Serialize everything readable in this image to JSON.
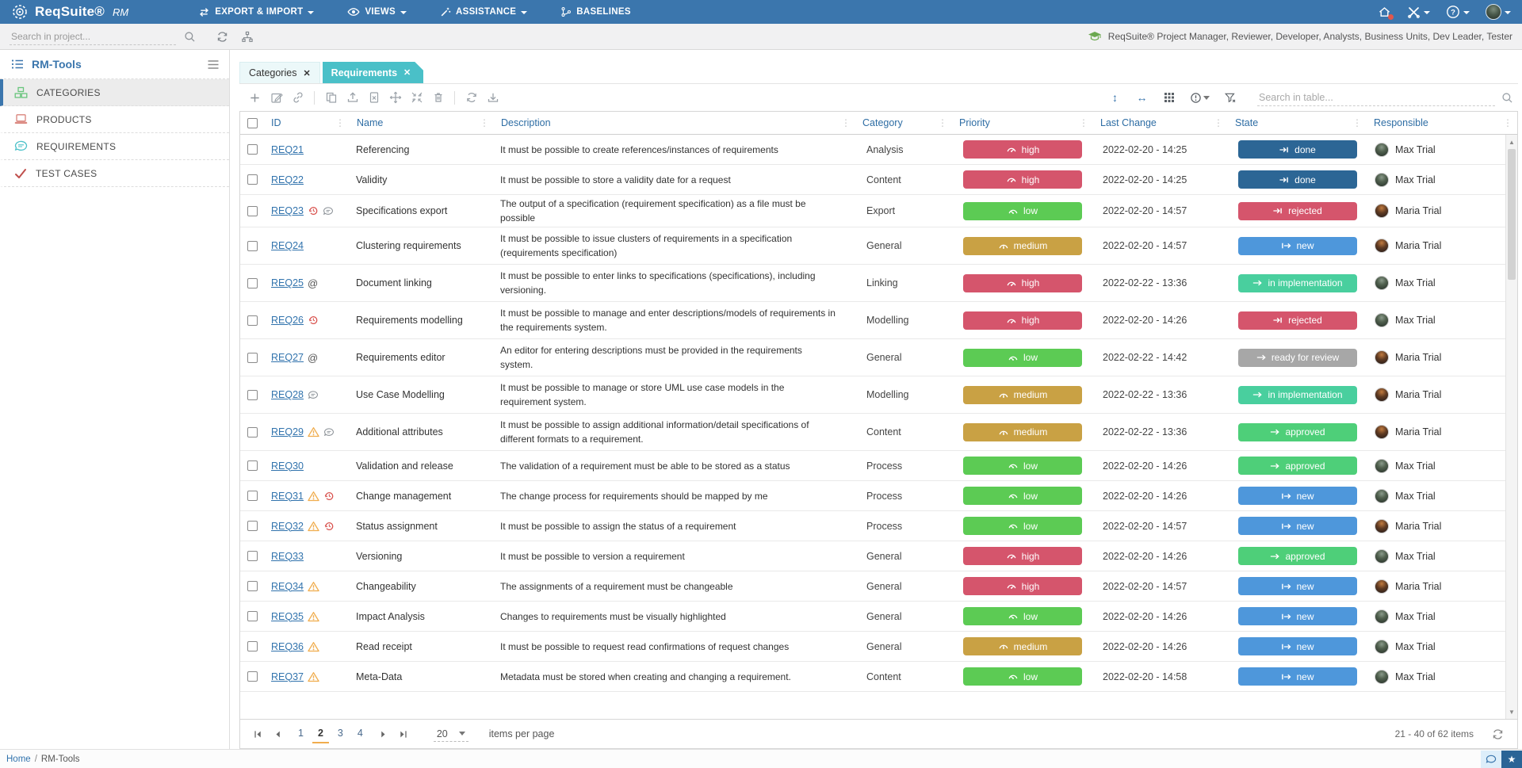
{
  "topbar": {
    "brand": "ReqSuite®",
    "brand_suffix": "RM",
    "menu": [
      "EXPORT & IMPORT",
      "VIEWS",
      "ASSISTANCE",
      "BASELINES"
    ]
  },
  "projectbar": {
    "search_placeholder": "Search in project...",
    "roles_text": "ReqSuite® Project Manager, Reviewer, Developer, Analysts, Business Units, Dev Leader, Tester"
  },
  "sidebar": {
    "title": "RM-Tools",
    "items": [
      {
        "label": "CATEGORIES",
        "active": true
      },
      {
        "label": "PRODUCTS",
        "active": false
      },
      {
        "label": "REQUIREMENTS",
        "active": false
      },
      {
        "label": "TEST CASES",
        "active": false
      }
    ]
  },
  "tabs": [
    {
      "label": "Categories",
      "active": false
    },
    {
      "label": "Requirements",
      "active": true
    }
  ],
  "grid": {
    "search_placeholder": "Search in table...",
    "columns": [
      "ID",
      "Name",
      "Description",
      "Category",
      "Priority",
      "Last Change",
      "State",
      "Responsible"
    ],
    "priority_styles": {
      "high": {
        "color": "#d5556c"
      },
      "medium": {
        "color": "#c9a144"
      },
      "low": {
        "color": "#5ccb54"
      }
    },
    "state_styles": {
      "done": {
        "color": "#2c6695",
        "icon": "to-bar"
      },
      "rejected": {
        "color": "#d5556c",
        "icon": "to-bar"
      },
      "new": {
        "color": "#4e97db",
        "icon": "from-bar"
      },
      "in implementation": {
        "color": "#49cf9e",
        "icon": "arrow"
      },
      "ready for review": {
        "color": "#a7a7a7",
        "icon": "arrow"
      },
      "approved": {
        "color": "#4ecf79",
        "icon": "arrow"
      }
    },
    "rows": [
      {
        "id": "REQ21",
        "icons": [],
        "name": "Referencing",
        "description": "It must be possible to create references/instances of requirements",
        "category": "Analysis",
        "priority": "high",
        "last_change": "2022-02-20 - 14:25",
        "state": "done",
        "responsible": "Max Trial",
        "avatar": "max",
        "tall": false
      },
      {
        "id": "REQ22",
        "icons": [],
        "name": "Validity",
        "description": "It must be possible to store a validity date for a request",
        "category": "Content",
        "priority": "high",
        "last_change": "2022-02-20 - 14:25",
        "state": "done",
        "responsible": "Max Trial",
        "avatar": "max",
        "tall": false
      },
      {
        "id": "REQ23",
        "icons": [
          "history",
          "comment"
        ],
        "name": "Specifications export",
        "description": "The output of a specification (requirement specification) as a file must be possible",
        "category": "Export",
        "priority": "low",
        "last_change": "2022-02-20 - 14:57",
        "state": "rejected",
        "responsible": "Maria Trial",
        "avatar": "maria",
        "tall": false
      },
      {
        "id": "REQ24",
        "icons": [],
        "name": "Clustering requirements",
        "description": "It must be possible to issue clusters of requirements in a specification (requirements specification)",
        "category": "General",
        "priority": "medium",
        "last_change": "2022-02-20 - 14:57",
        "state": "new",
        "responsible": "Maria Trial",
        "avatar": "maria",
        "tall": true
      },
      {
        "id": "REQ25",
        "icons": [
          "at"
        ],
        "name": "Document linking",
        "description": "It must be possible to enter links to specifications (specifications), including versioning.",
        "category": "Linking",
        "priority": "high",
        "last_change": "2022-02-22 - 13:36",
        "state": "in implementation",
        "responsible": "Max Trial",
        "avatar": "max",
        "tall": true
      },
      {
        "id": "REQ26",
        "icons": [
          "history"
        ],
        "name": "Requirements modelling",
        "description": "It must be possible to manage and enter descriptions/models of requirements in the requirements system.",
        "category": "Modelling",
        "priority": "high",
        "last_change": "2022-02-20 - 14:26",
        "state": "rejected",
        "responsible": "Max Trial",
        "avatar": "max",
        "tall": true
      },
      {
        "id": "REQ27",
        "icons": [
          "at"
        ],
        "name": "Requirements editor",
        "description": "An editor for entering descriptions must be provided in the requirements system.",
        "category": "General",
        "priority": "low",
        "last_change": "2022-02-22 - 14:42",
        "state": "ready for review",
        "responsible": "Maria Trial",
        "avatar": "maria",
        "tall": true
      },
      {
        "id": "REQ28",
        "icons": [
          "comment"
        ],
        "name": "Use Case Modelling",
        "description": "It must be possible to manage or store UML use case models in the requirement system.",
        "category": "Modelling",
        "priority": "medium",
        "last_change": "2022-02-22 - 13:36",
        "state": "in implementation",
        "responsible": "Maria Trial",
        "avatar": "maria",
        "tall": true
      },
      {
        "id": "REQ29",
        "icons": [
          "warning",
          "comment"
        ],
        "name": "Additional attributes",
        "description": "It must be possible to assign additional information/detail specifications of different formats to a requirement.",
        "category": "Content",
        "priority": "medium",
        "last_change": "2022-02-22 - 13:36",
        "state": "approved",
        "responsible": "Maria Trial",
        "avatar": "maria",
        "tall": true
      },
      {
        "id": "REQ30",
        "icons": [],
        "name": "Validation and release",
        "description": "The validation of a requirement must be able to be stored as a status",
        "category": "Process",
        "priority": "low",
        "last_change": "2022-02-20 - 14:26",
        "state": "approved",
        "responsible": "Max Trial",
        "avatar": "max",
        "tall": false
      },
      {
        "id": "REQ31",
        "icons": [
          "warning",
          "history"
        ],
        "name": "Change management",
        "description": "The change process for requirements should be mapped by me",
        "category": "Process",
        "priority": "low",
        "last_change": "2022-02-20 - 14:26",
        "state": "new",
        "responsible": "Max Trial",
        "avatar": "max",
        "tall": false
      },
      {
        "id": "REQ32",
        "icons": [
          "warning",
          "history"
        ],
        "name": "Status assignment",
        "description": "It must be possible to assign the status of a requirement",
        "category": "Process",
        "priority": "low",
        "last_change": "2022-02-20 - 14:57",
        "state": "new",
        "responsible": "Maria Trial",
        "avatar": "maria",
        "tall": false
      },
      {
        "id": "REQ33",
        "icons": [],
        "name": "Versioning",
        "description": "It must be possible to version a requirement",
        "category": "General",
        "priority": "high",
        "last_change": "2022-02-20 - 14:26",
        "state": "approved",
        "responsible": "Max Trial",
        "avatar": "max",
        "tall": false
      },
      {
        "id": "REQ34",
        "icons": [
          "warning"
        ],
        "name": "Changeability",
        "description": "The assignments of a requirement must be changeable",
        "category": "General",
        "priority": "high",
        "last_change": "2022-02-20 - 14:57",
        "state": "new",
        "responsible": "Maria Trial",
        "avatar": "maria",
        "tall": false
      },
      {
        "id": "REQ35",
        "icons": [
          "warning"
        ],
        "name": "Impact Analysis",
        "description": "Changes to requirements must be visually highlighted",
        "category": "General",
        "priority": "low",
        "last_change": "2022-02-20 - 14:26",
        "state": "new",
        "responsible": "Max Trial",
        "avatar": "max",
        "tall": false
      },
      {
        "id": "REQ36",
        "icons": [
          "warning"
        ],
        "name": "Read receipt",
        "description": "It must be possible to request read confirmations of request changes",
        "category": "General",
        "priority": "medium",
        "last_change": "2022-02-20 - 14:26",
        "state": "new",
        "responsible": "Max Trial",
        "avatar": "max",
        "tall": false
      },
      {
        "id": "REQ37",
        "icons": [
          "warning"
        ],
        "name": "Meta-Data",
        "description": "Metadata must be stored when creating and changing a requirement.",
        "category": "Content",
        "priority": "low",
        "last_change": "2022-02-20 - 14:58",
        "state": "new",
        "responsible": "Max Trial",
        "avatar": "max",
        "tall": false
      }
    ]
  },
  "pagination": {
    "pages": [
      "1",
      "2",
      "3",
      "4"
    ],
    "current_page": "2",
    "page_size": "20",
    "items_per_page_label": "items per page",
    "range_label": "21 - 40 of 62 items"
  },
  "statusbar": {
    "breadcrumb": [
      "Home",
      "RM-Tools"
    ]
  }
}
